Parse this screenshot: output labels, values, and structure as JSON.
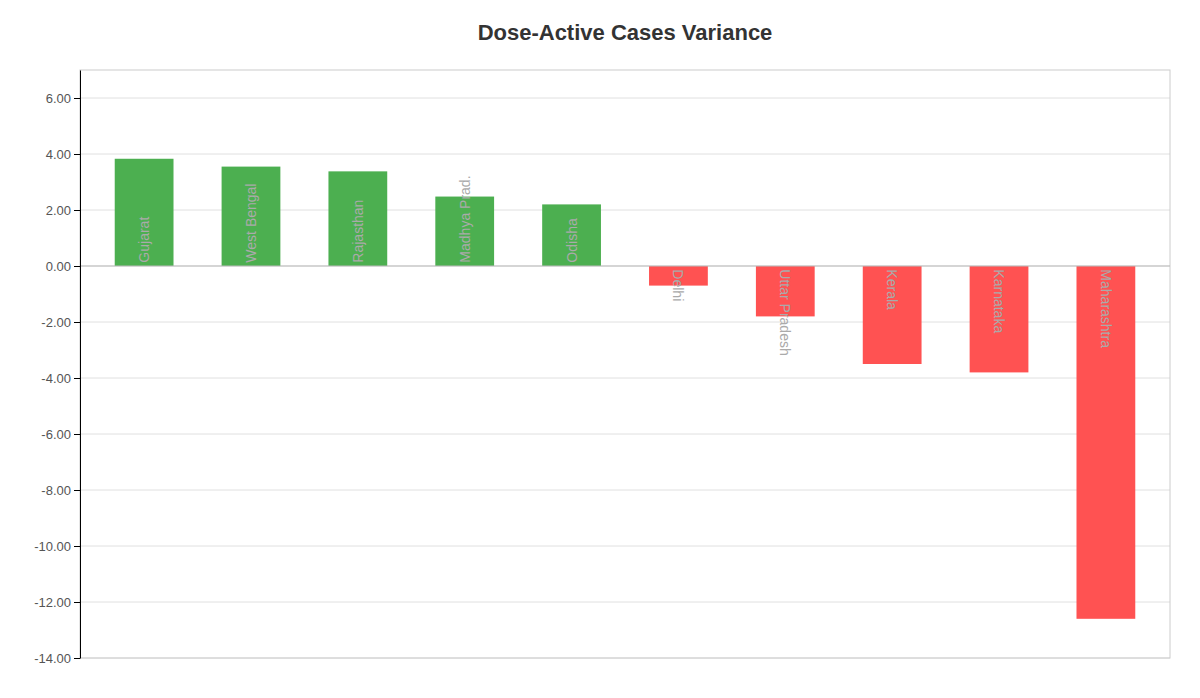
{
  "chart_data": {
    "type": "bar",
    "title": "Dose-Active Cases Variance",
    "categories": [
      "Gujarat",
      "West Bengal",
      "Rajasthan",
      "Madhya Prad.",
      "Odisha",
      "Delhi",
      "Uttar Pradesh",
      "Kerala",
      "Karnataka",
      "Maharashtra"
    ],
    "values": [
      3.83,
      3.55,
      3.38,
      2.48,
      2.2,
      -0.7,
      -1.8,
      -3.5,
      -3.8,
      -12.6
    ],
    "colors": [
      "#4CAF50",
      "#4CAF50",
      "#4CAF50",
      "#4CAF50",
      "#4CAF50",
      "#FF5252",
      "#FF5252",
      "#FF5252",
      "#FF5252",
      "#FF5252"
    ],
    "ylim": [
      -14.0,
      7.0
    ],
    "yticks": [
      {
        "value": 6.0,
        "label": "6.00"
      },
      {
        "value": 4.0,
        "label": "4.00"
      },
      {
        "value": 2.0,
        "label": "2.00"
      },
      {
        "value": 0.0,
        "label": "0.00"
      },
      {
        "value": -2.0,
        "label": "-2.00"
      },
      {
        "value": -4.0,
        "label": "-4.00"
      },
      {
        "value": -6.0,
        "label": "-6.00"
      },
      {
        "value": -8.0,
        "label": "-8.00"
      },
      {
        "value": -10.0,
        "label": "-10.00"
      },
      {
        "value": -12.0,
        "label": "-12.00"
      },
      {
        "value": -14.0,
        "label": "-14.00"
      }
    ],
    "grid": true,
    "tick_labels": "y"
  }
}
